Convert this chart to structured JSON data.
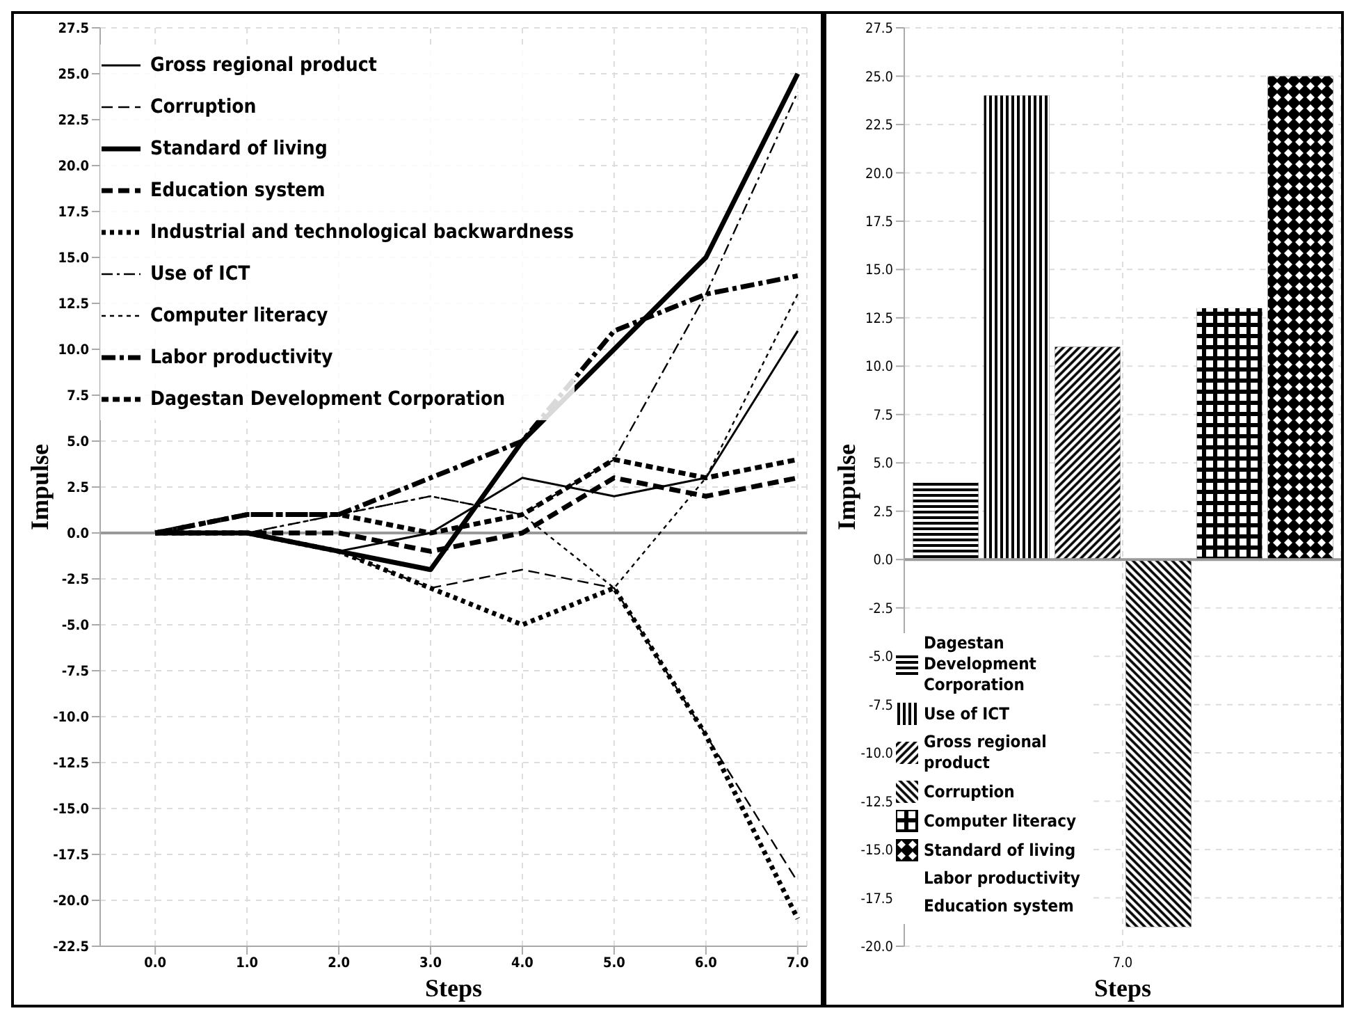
{
  "chart_data": [
    {
      "type": "line",
      "xlabel": "Steps",
      "ylabel": "Impulse",
      "x": [
        0,
        1,
        2,
        3,
        4,
        5,
        6,
        7
      ],
      "xlim": [
        -0.6,
        7.1
      ],
      "xticks": [
        {
          "value": 0,
          "label": "0.0"
        },
        {
          "value": 1,
          "label": "1.0"
        },
        {
          "value": 2,
          "label": "2.0"
        },
        {
          "value": 3,
          "label": "3.0"
        },
        {
          "value": 4,
          "label": "4.0"
        },
        {
          "value": 5,
          "label": "5.0"
        },
        {
          "value": 6,
          "label": "6.0"
        },
        {
          "value": 7,
          "label": "7.0"
        }
      ],
      "ylim": [
        -22.5,
        27.5
      ],
      "yticks": [
        {
          "value": -22.5,
          "label": "-22.5"
        },
        {
          "value": -20,
          "label": "-20.0"
        },
        {
          "value": -17.5,
          "label": "-17.5"
        },
        {
          "value": -15,
          "label": "-15.0"
        },
        {
          "value": -12.5,
          "label": "-12.5"
        },
        {
          "value": -10,
          "label": "-10.0"
        },
        {
          "value": -7.5,
          "label": "-7.5"
        },
        {
          "value": -5,
          "label": "-5.0"
        },
        {
          "value": -2.5,
          "label": "-2.5"
        },
        {
          "value": 0,
          "label": "0.0"
        },
        {
          "value": 2.5,
          "label": "2.5"
        },
        {
          "value": 5,
          "label": "5.0"
        },
        {
          "value": 7.5,
          "label": "7.5"
        },
        {
          "value": 10,
          "label": "10.0"
        },
        {
          "value": 12.5,
          "label": "12.5"
        },
        {
          "value": 15,
          "label": "15.0"
        },
        {
          "value": 17.5,
          "label": "17.5"
        },
        {
          "value": 20,
          "label": "20.0"
        },
        {
          "value": 22.5,
          "label": "22.5"
        },
        {
          "value": 25,
          "label": "25.0"
        },
        {
          "value": 27.5,
          "label": "27.5"
        }
      ],
      "grid": true,
      "legend": "top left",
      "marker": "none",
      "ref_lines": [
        {
          "axis": "y",
          "value": 0,
          "color": "#999999"
        }
      ],
      "series": [
        {
          "name": "Gross regional product",
          "color": "#000000",
          "line_style": "solid",
          "values": [
            0,
            0,
            -1,
            0,
            3,
            2,
            3,
            11
          ]
        },
        {
          "name": "Corruption",
          "color": "#000000",
          "line_style": "dashed",
          "values": [
            0,
            0,
            -1,
            -3,
            -2,
            -3,
            -11,
            -19
          ]
        },
        {
          "name": "Standard of living",
          "color": "#000000",
          "line_style": "solid",
          "values": [
            0,
            0,
            -1,
            -2,
            5,
            10,
            15,
            25
          ]
        },
        {
          "name": "Education system",
          "color": "#000000",
          "line_style": "dashed",
          "values": [
            0,
            0,
            0,
            -1,
            0,
            3,
            2,
            3
          ]
        },
        {
          "name": "Industrial and technological backwardness",
          "color": "#000000",
          "line_style": "dotted",
          "values": [
            0,
            0,
            -1,
            -3,
            -5,
            -3,
            -11,
            -21
          ]
        },
        {
          "name": "Use of ICT",
          "color": "#000000",
          "line_style": "dashed",
          "values": [
            0,
            0,
            1,
            2,
            1,
            4,
            13,
            24
          ]
        },
        {
          "name": "Computer literacy",
          "color": "#000000",
          "line_style": "dotted",
          "values": [
            0,
            0,
            1,
            2,
            1,
            -3,
            3,
            13
          ]
        },
        {
          "name": "Labor productivity",
          "color": "#000000",
          "line_style": "dashed",
          "values": [
            0,
            1,
            1,
            3,
            5,
            11,
            13,
            14
          ]
        },
        {
          "name": "Dagestan Development Corporation",
          "color": "#000000",
          "line_style": "dotted",
          "values": [
            0,
            1,
            1,
            0,
            1,
            4,
            3,
            4
          ]
        }
      ]
    },
    {
      "type": "bar",
      "xlabel": "Steps",
      "ylabel": "Impulse",
      "categories": [
        "7.0"
      ],
      "ylim": [
        -20,
        27.5
      ],
      "yticks": [
        {
          "value": -20,
          "label": "-20.0"
        },
        {
          "value": -17.5,
          "label": "-17.5"
        },
        {
          "value": -15,
          "label": "-15.0"
        },
        {
          "value": -12.5,
          "label": "-12.5"
        },
        {
          "value": -10,
          "label": "-10.0"
        },
        {
          "value": -7.5,
          "label": "-7.5"
        },
        {
          "value": -5,
          "label": "-5.0"
        },
        {
          "value": -2.5,
          "label": "-2.5"
        },
        {
          "value": 0,
          "label": "0.0"
        },
        {
          "value": 2.5,
          "label": "2.5"
        },
        {
          "value": 5,
          "label": "5.0"
        },
        {
          "value": 7.5,
          "label": "7.5"
        },
        {
          "value": 10,
          "label": "10.0"
        },
        {
          "value": 12.5,
          "label": "12.5"
        },
        {
          "value": 15,
          "label": "15.0"
        },
        {
          "value": 17.5,
          "label": "17.5"
        },
        {
          "value": 20,
          "label": "20.0"
        },
        {
          "value": 22.5,
          "label": "22.5"
        },
        {
          "value": 25,
          "label": "25.0"
        },
        {
          "value": 27.5,
          "label": "27.5"
        }
      ],
      "grid": true,
      "legend": "bottom left",
      "ref_lines": [
        {
          "axis": "y",
          "value": 0,
          "color": "#999999"
        }
      ],
      "annotations": [
        "Labor productivity",
        "Education system"
      ],
      "series": [
        {
          "name": "Dagestan Development Corporation",
          "color": "#000000",
          "values": [
            4
          ]
        },
        {
          "name": "Use of ICT",
          "color": "#000000",
          "values": [
            24
          ]
        },
        {
          "name": "Gross regional product",
          "color": "#000000",
          "values": [
            11
          ]
        },
        {
          "name": "Corruption",
          "color": "#000000",
          "values": [
            -19
          ]
        },
        {
          "name": "Computer literacy",
          "color": "#000000",
          "values": [
            13
          ]
        },
        {
          "name": "Standard of living",
          "color": "#000000",
          "values": [
            25
          ]
        }
      ]
    }
  ]
}
